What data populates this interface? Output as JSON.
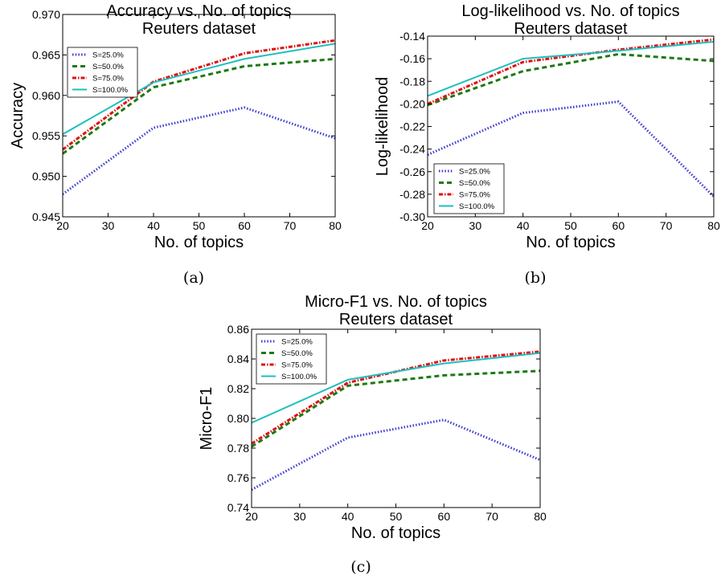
{
  "colors": {
    "s25": "#3b3bd1",
    "s50": "#1e7a12",
    "s75": "#e01010",
    "s100": "#1ebfbf"
  },
  "captions": [
    "(a)",
    "(b)",
    "(c)"
  ],
  "chart_data": [
    {
      "type": "line",
      "title": "Accuracy vs. No. of topics",
      "subtitle": "Reuters dataset",
      "xlabel": "No. of topics",
      "ylabel": "Accuracy",
      "x": [
        20,
        40,
        60,
        80
      ],
      "xlim": [
        20,
        80
      ],
      "ylim": [
        0.945,
        0.97
      ],
      "xticks": [
        20,
        30,
        40,
        50,
        60,
        70,
        80
      ],
      "xtick_labels": [
        "20",
        "30",
        "40",
        "50",
        "60",
        "70",
        "80"
      ],
      "yticks": [
        0.945,
        0.95,
        0.955,
        0.96,
        0.965,
        0.97
      ],
      "ytick_labels": [
        "0.945",
        "0.950",
        "0.955",
        "0.960",
        "0.965",
        "0.970"
      ],
      "grid": false,
      "legend": "upper-left",
      "series": [
        {
          "name": "S=25.0%",
          "values": [
            0.9478,
            0.956,
            0.9585,
            0.9547
          ]
        },
        {
          "name": "S=50.0%",
          "values": [
            0.9528,
            0.961,
            0.9636,
            0.9645
          ]
        },
        {
          "name": "S=75.0%",
          "values": [
            0.9533,
            0.9617,
            0.9652,
            0.9668
          ]
        },
        {
          "name": "S=100.0%",
          "values": [
            0.9552,
            0.9616,
            0.9645,
            0.9664
          ]
        }
      ]
    },
    {
      "type": "line",
      "title": "Log-likelihood vs. No. of topics",
      "subtitle": "Reuters dataset",
      "xlabel": "No. of topics",
      "ylabel": "Log-likelihood",
      "x": [
        20,
        40,
        60,
        80
      ],
      "xlim": [
        20,
        80
      ],
      "ylim": [
        -0.3,
        -0.14
      ],
      "xticks": [
        20,
        30,
        40,
        50,
        60,
        70,
        80
      ],
      "xtick_labels": [
        "20",
        "30",
        "40",
        "50",
        "60",
        "70",
        "80"
      ],
      "yticks": [
        -0.3,
        -0.28,
        -0.26,
        -0.24,
        -0.22,
        -0.2,
        -0.18,
        -0.16,
        -0.14
      ],
      "ytick_labels": [
        "-0.30",
        "-0.28",
        "-0.26",
        "-0.24",
        "-0.22",
        "-0.20",
        "-0.18",
        "-0.16",
        "-0.14"
      ],
      "grid": false,
      "legend": "lower-left",
      "series": [
        {
          "name": "S=25.0%",
          "values": [
            -0.245,
            -0.208,
            -0.198,
            -0.282
          ]
        },
        {
          "name": "S=50.0%",
          "values": [
            -0.201,
            -0.171,
            -0.156,
            -0.162
          ]
        },
        {
          "name": "S=75.0%",
          "values": [
            -0.2,
            -0.163,
            -0.152,
            -0.143
          ]
        },
        {
          "name": "S=100.0%",
          "values": [
            -0.193,
            -0.16,
            -0.153,
            -0.145
          ]
        }
      ]
    },
    {
      "type": "line",
      "title": "Micro-F1 vs. No. of topics",
      "subtitle": "Reuters dataset",
      "xlabel": "No. of topics",
      "ylabel": "Micro-F1",
      "x": [
        20,
        40,
        60,
        80
      ],
      "xlim": [
        20,
        80
      ],
      "ylim": [
        0.74,
        0.86
      ],
      "xticks": [
        20,
        30,
        40,
        50,
        60,
        70,
        80
      ],
      "xtick_labels": [
        "20",
        "30",
        "40",
        "50",
        "60",
        "70",
        "80"
      ],
      "yticks": [
        0.74,
        0.76,
        0.78,
        0.8,
        0.82,
        0.84,
        0.86
      ],
      "ytick_labels": [
        "0.74",
        "0.76",
        "0.78",
        "0.80",
        "0.82",
        "0.84",
        "0.86"
      ],
      "grid": false,
      "legend": "upper-left",
      "series": [
        {
          "name": "S=25.0%",
          "values": [
            0.752,
            0.787,
            0.799,
            0.772
          ]
        },
        {
          "name": "S=50.0%",
          "values": [
            0.781,
            0.822,
            0.829,
            0.832
          ]
        },
        {
          "name": "S=75.0%",
          "values": [
            0.783,
            0.824,
            0.839,
            0.845
          ]
        },
        {
          "name": "S=100.0%",
          "values": [
            0.797,
            0.826,
            0.837,
            0.844
          ]
        }
      ]
    }
  ]
}
